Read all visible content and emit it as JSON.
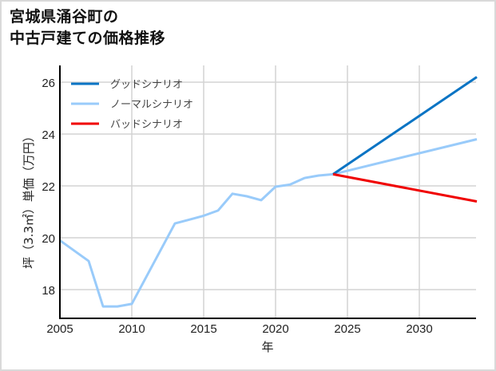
{
  "title_line1": "宮城県涌谷町の",
  "title_line2": "中古戸建ての価格推移",
  "chart_data": {
    "type": "line",
    "title": "宮城県涌谷町の中古戸建ての価格推移",
    "xlabel": "年",
    "ylabel": "坪（3.3㎡）単価（万円）",
    "xlim": [
      2005,
      2034
    ],
    "ylim": [
      17,
      26.6
    ],
    "xticks": [
      2005,
      2010,
      2015,
      2020,
      2025,
      2030
    ],
    "yticks": [
      18,
      20,
      22,
      24,
      26
    ],
    "grid": true,
    "legend_position": "upper left",
    "series": [
      {
        "name": "グッドシナリオ",
        "color": "#0a74c4",
        "x": [
          2024,
          2034
        ],
        "y": [
          22.45,
          26.2
        ]
      },
      {
        "name": "ノーマルシナリオ",
        "color": "#99cbfa",
        "x": [
          2005,
          2007,
          2008,
          2009,
          2010,
          2013,
          2014,
          2015,
          2016,
          2017,
          2018,
          2019,
          2020,
          2021,
          2022,
          2023,
          2024,
          2034
        ],
        "y": [
          19.9,
          19.1,
          17.35,
          17.35,
          17.45,
          20.55,
          20.7,
          20.85,
          21.05,
          21.7,
          21.6,
          21.45,
          21.97,
          22.05,
          22.3,
          22.4,
          22.45,
          23.8
        ]
      },
      {
        "name": "バッドシナリオ",
        "color": "#f00000",
        "x": [
          2024,
          2034
        ],
        "y": [
          22.45,
          21.4
        ]
      }
    ]
  }
}
